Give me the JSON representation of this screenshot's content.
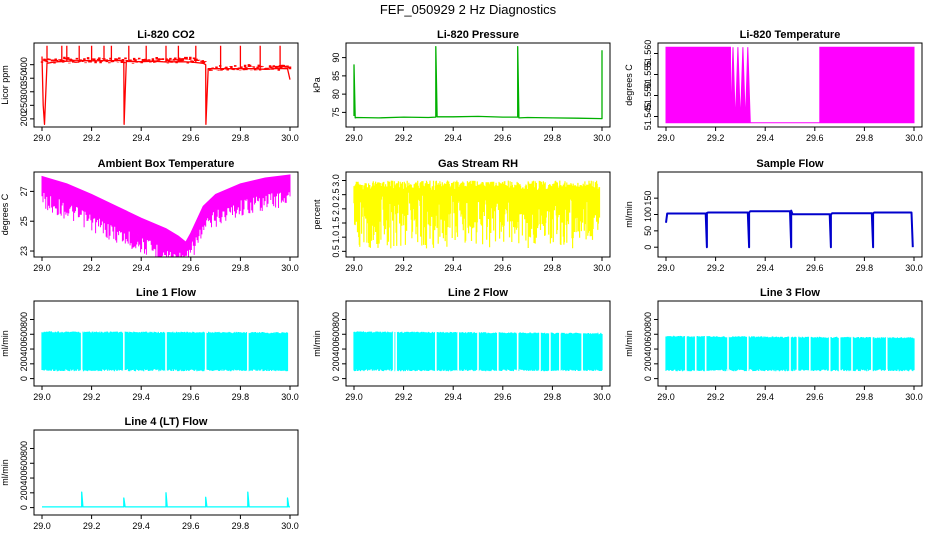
{
  "page": {
    "title": "FEF_050929  2 Hz Diagnostics"
  },
  "chart_data": [
    {
      "type": "line",
      "title": "Li-820 CO2",
      "ylabel": "Licor ppm",
      "xlabel": "",
      "color": "#ff0000",
      "xlim": [
        29.0,
        30.0
      ],
      "ylim": [
        170,
        480
      ],
      "xticks": [
        29.0,
        29.2,
        29.4,
        29.6,
        29.8,
        30.0
      ],
      "xtick_labels": [
        "29.0",
        "29.2",
        "29.4",
        "29.6",
        "29.8",
        "30.0"
      ],
      "yticks": [
        200,
        250,
        300,
        350,
        400
      ],
      "ytick_labels": [
        "200",
        "250",
        "300",
        "350",
        "400"
      ],
      "series": [
        {
          "x": [
            29.0,
            29.005,
            29.01,
            29.02,
            29.05,
            29.1,
            29.15,
            29.2,
            29.25,
            29.3,
            29.33,
            29.331,
            29.34,
            29.4,
            29.45,
            29.5,
            29.55,
            29.6,
            29.65,
            29.66,
            29.661,
            29.67,
            29.7,
            29.75,
            29.8,
            29.85,
            29.9,
            29.95,
            29.99,
            30.0
          ],
          "y": [
            430,
            250,
            180,
            405,
            410,
            413,
            415,
            414,
            415,
            415,
            415,
            180,
            412,
            411,
            413,
            410,
            411,
            410,
            405,
            400,
            180,
            385,
            385,
            385,
            385,
            385,
            383,
            386,
            385,
            345
          ]
        },
        {
          "x": [
            29.02,
            29.02,
            29.08,
            29.08,
            29.1,
            29.1,
            29.15,
            29.15,
            29.2,
            29.2,
            29.25,
            29.25,
            29.28,
            29.28,
            29.35,
            29.35,
            29.42,
            29.42,
            29.5,
            29.5,
            29.55,
            29.55,
            29.62,
            29.62,
            29.72,
            29.72,
            29.8,
            29.8,
            29.88,
            29.88,
            29.96,
            29.96
          ],
          "y": [
            410,
            470,
            415,
            470,
            413,
            470,
            415,
            470,
            414,
            470,
            415,
            470,
            415,
            470,
            413,
            470,
            411,
            470,
            410,
            470,
            411,
            470,
            410,
            470,
            385,
            470,
            385,
            470,
            385,
            470,
            386,
            470
          ]
        }
      ]
    },
    {
      "type": "line",
      "title": "Li-820 Pressure",
      "ylabel": "kPa",
      "xlabel": "",
      "color": "#00b000",
      "xlim": [
        29.0,
        30.0
      ],
      "ylim": [
        71,
        94
      ],
      "xticks": [
        29.0,
        29.2,
        29.4,
        29.6,
        29.8,
        30.0
      ],
      "xtick_labels": [
        "29.0",
        "29.2",
        "29.4",
        "29.6",
        "29.8",
        "30.0"
      ],
      "yticks": [
        75,
        80,
        85,
        90
      ],
      "ytick_labels": [
        "75",
        "80",
        "85",
        "90"
      ],
      "series": [
        {
          "x": [
            29.0,
            29.0,
            29.005,
            29.01,
            29.1,
            29.2,
            29.3,
            29.33,
            29.33,
            29.335,
            29.4,
            29.5,
            29.6,
            29.66,
            29.66,
            29.665,
            29.7,
            29.8,
            29.9,
            30.0,
            30.0
          ],
          "y": [
            74,
            88,
            73.5,
            73.6,
            73.5,
            73.7,
            73.6,
            73.7,
            93,
            73.8,
            73.8,
            73.9,
            73.7,
            73.7,
            93,
            73.5,
            73.6,
            73.5,
            73.4,
            73.3,
            92
          ]
        }
      ]
    },
    {
      "type": "line",
      "title": "Li-820 Temperature",
      "ylabel": "degrees C",
      "xlabel": "",
      "color": "#ff00ff",
      "xlim": [
        29.0,
        30.0
      ],
      "ylim": [
        51.5425,
        51.5625
      ],
      "xticks": [
        29.0,
        29.2,
        29.4,
        29.6,
        29.8,
        30.0
      ],
      "xtick_labels": [
        "29.0",
        "29.2",
        "29.4",
        "29.6",
        "29.8",
        "30.0"
      ],
      "yticks": [
        51.545,
        51.55,
        51.555,
        51.56
      ],
      "ytick_labels": [
        "51.545",
        "51.550",
        "51.555",
        "51.560"
      ],
      "series": [
        {
          "x": [
            29.0,
            29.26,
            29.26,
            29.27,
            29.28,
            29.29,
            29.3,
            29.31,
            29.32,
            29.33,
            29.34,
            29.35,
            29.62,
            29.62,
            30.0
          ],
          "y_low": [
            51.5435,
            51.5435,
            51.5435,
            51.5435,
            51.5435,
            51.5435,
            51.5435,
            51.5435,
            51.5435,
            51.5435,
            51.5435,
            51.5435,
            51.5435,
            51.5435,
            51.5435
          ],
          "y_high": [
            51.5615,
            51.5615,
            51.5435,
            51.5615,
            51.5435,
            51.5615,
            51.5435,
            51.5615,
            51.5435,
            51.5615,
            51.5435,
            51.5435,
            51.5435,
            51.5615,
            51.5615
          ]
        }
      ]
    },
    {
      "type": "line",
      "title": "Ambient Box Temperature",
      "ylabel": "degrees C",
      "xlabel": "",
      "color": "#ff00ff",
      "xlim": [
        29.0,
        30.0
      ],
      "ylim": [
        22.6,
        28.3
      ],
      "xticks": [
        29.0,
        29.2,
        29.4,
        29.6,
        29.8,
        30.0
      ],
      "xtick_labels": [
        "29.0",
        "29.2",
        "29.4",
        "29.6",
        "29.8",
        "30.0"
      ],
      "yticks": [
        23,
        25,
        27
      ],
      "ytick_labels": [
        "23",
        "25",
        "27"
      ],
      "series": [
        {
          "x": [
            29.0,
            29.1,
            29.2,
            29.3,
            29.4,
            29.5,
            29.55,
            29.58,
            29.6,
            29.65,
            29.7,
            29.8,
            29.9,
            30.0
          ],
          "y_low": [
            27.0,
            26.3,
            25.5,
            24.7,
            24.0,
            23.3,
            23.0,
            22.9,
            23.5,
            25.0,
            25.8,
            26.5,
            26.9,
            27.2
          ],
          "y_high": [
            28.0,
            27.5,
            26.8,
            26.0,
            25.2,
            24.5,
            24.0,
            23.6,
            24.2,
            26.0,
            26.8,
            27.5,
            27.9,
            28.1
          ]
        }
      ]
    },
    {
      "type": "area",
      "title": "Gas Stream RH",
      "ylabel": "percent",
      "xlabel": "",
      "color": "#ffff00",
      "xlim": [
        29.0,
        30.0
      ],
      "ylim": [
        0.3,
        3.3
      ],
      "xticks": [
        29.0,
        29.2,
        29.4,
        29.6,
        29.8,
        30.0
      ],
      "xtick_labels": [
        "29.0",
        "29.2",
        "29.4",
        "29.6",
        "29.8",
        "30.0"
      ],
      "yticks": [
        0.5,
        1.0,
        1.5,
        2.0,
        2.5,
        3.0
      ],
      "ytick_labels": [
        "0.5",
        "1.0",
        "1.5",
        "2.0",
        "2.5",
        "3.0"
      ],
      "series": [
        {
          "x": [
            29.0,
            29.99
          ],
          "y_low": [
            0.6,
            0.6
          ],
          "y_high": [
            3.0,
            3.0
          ]
        }
      ]
    },
    {
      "type": "line",
      "title": "Sample Flow",
      "ylabel": "ml/min",
      "xlabel": "",
      "color": "#0000cc",
      "xlim": [
        29.0,
        30.0
      ],
      "ylim": [
        -30,
        230
      ],
      "xticks": [
        29.0,
        29.2,
        29.4,
        29.6,
        29.8,
        30.0
      ],
      "xtick_labels": [
        "29.0",
        "29.2",
        "29.4",
        "29.6",
        "29.8",
        "30.0"
      ],
      "yticks": [
        0,
        50,
        100,
        150
      ],
      "ytick_labels": [
        "0",
        "50",
        "100",
        "150"
      ],
      "series": [
        {
          "x": [
            29.0,
            29.005,
            29.16,
            29.165,
            29.165,
            29.17,
            29.33,
            29.335,
            29.335,
            29.34,
            29.5,
            29.505,
            29.505,
            29.51,
            29.66,
            29.665,
            29.665,
            29.67,
            29.83,
            29.835,
            29.835,
            29.84,
            29.99,
            29.995
          ],
          "y": [
            75,
            103,
            103,
            0,
            105,
            106,
            106,
            0,
            106,
            110,
            110,
            0,
            112,
            101,
            101,
            0,
            100,
            104,
            104,
            0,
            104,
            106,
            106,
            0
          ]
        }
      ]
    },
    {
      "type": "area",
      "title": "Line 1 Flow",
      "ylabel": "ml/min",
      "xlabel": "",
      "color": "#00ffff",
      "xlim": [
        29.0,
        30.0
      ],
      "ylim": [
        -100,
        1050
      ],
      "xticks": [
        29.0,
        29.2,
        29.4,
        29.6,
        29.8,
        30.0
      ],
      "xtick_labels": [
        "29.0",
        "29.2",
        "29.4",
        "29.6",
        "29.8",
        "30.0"
      ],
      "yticks": [
        0,
        200,
        400,
        600,
        800
      ],
      "ytick_labels": [
        "0",
        "200",
        "400",
        "600",
        "800"
      ],
      "gaps": [
        29.16,
        29.33,
        29.5,
        29.66,
        29.83
      ],
      "series": [
        {
          "x": [
            29.0,
            29.99
          ],
          "y_low": [
            100,
            100
          ],
          "y_high": [
            640,
            630
          ]
        }
      ]
    },
    {
      "type": "area",
      "title": "Line 2 Flow",
      "ylabel": "ml/min",
      "xlabel": "",
      "color": "#00ffff",
      "xlim": [
        29.0,
        30.0
      ],
      "ylim": [
        -100,
        1050
      ],
      "xticks": [
        29.0,
        29.2,
        29.4,
        29.6,
        29.8,
        30.0
      ],
      "xtick_labels": [
        "29.0",
        "29.2",
        "29.4",
        "29.6",
        "29.8",
        "30.0"
      ],
      "yticks": [
        0,
        200,
        400,
        600,
        800
      ],
      "ytick_labels": [
        "0",
        "200",
        "400",
        "600",
        "800"
      ],
      "gaps": [
        29.16,
        29.17,
        29.33,
        29.42,
        29.5,
        29.58,
        29.66,
        29.75,
        29.79,
        29.83,
        29.92
      ],
      "series": [
        {
          "x": [
            29.0,
            30.0
          ],
          "y_low": [
            100,
            100
          ],
          "y_high": [
            640,
            620
          ]
        }
      ]
    },
    {
      "type": "area",
      "title": "Line 3 Flow",
      "ylabel": "ml/min",
      "xlabel": "",
      "color": "#00ffff",
      "xlim": [
        29.0,
        30.0
      ],
      "ylim": [
        -100,
        1050
      ],
      "xticks": [
        29.0,
        29.2,
        29.4,
        29.6,
        29.8,
        30.0
      ],
      "xtick_labels": [
        "29.0",
        "29.2",
        "29.4",
        "29.6",
        "29.8",
        "30.0"
      ],
      "yticks": [
        0,
        200,
        400,
        600,
        800
      ],
      "ytick_labels": [
        "0",
        "200",
        "400",
        "600",
        "800"
      ],
      "gaps": [
        29.08,
        29.12,
        29.16,
        29.25,
        29.33,
        29.5,
        29.53,
        29.58,
        29.66,
        29.7,
        29.75,
        29.83,
        29.89
      ],
      "series": [
        {
          "x": [
            29.0,
            30.0
          ],
          "y_low": [
            100,
            100
          ],
          "y_high": [
            580,
            560
          ]
        }
      ]
    },
    {
      "type": "line",
      "title": "Line 4 (LT) Flow",
      "ylabel": "ml/min",
      "xlabel": "",
      "color": "#00ffff",
      "xlim": [
        29.0,
        30.0
      ],
      "ylim": [
        -100,
        1050
      ],
      "xticks": [
        29.0,
        29.2,
        29.4,
        29.6,
        29.8,
        30.0
      ],
      "xtick_labels": [
        "29.0",
        "29.2",
        "29.4",
        "29.6",
        "29.8",
        "30.0"
      ],
      "yticks": [
        0,
        200,
        400,
        600,
        800
      ],
      "ytick_labels": [
        "0",
        "200",
        "400",
        "600",
        "800"
      ],
      "series": [
        {
          "x": [
            29.0,
            29.16,
            29.16,
            29.165,
            29.33,
            29.33,
            29.335,
            29.5,
            29.5,
            29.505,
            29.66,
            29.66,
            29.665,
            29.83,
            29.83,
            29.835,
            29.99,
            29.99,
            29.995,
            30.0
          ],
          "y": [
            10,
            10,
            210,
            10,
            10,
            130,
            10,
            10,
            200,
            10,
            10,
            140,
            10,
            10,
            210,
            10,
            10,
            130,
            10,
            10
          ]
        }
      ]
    }
  ]
}
